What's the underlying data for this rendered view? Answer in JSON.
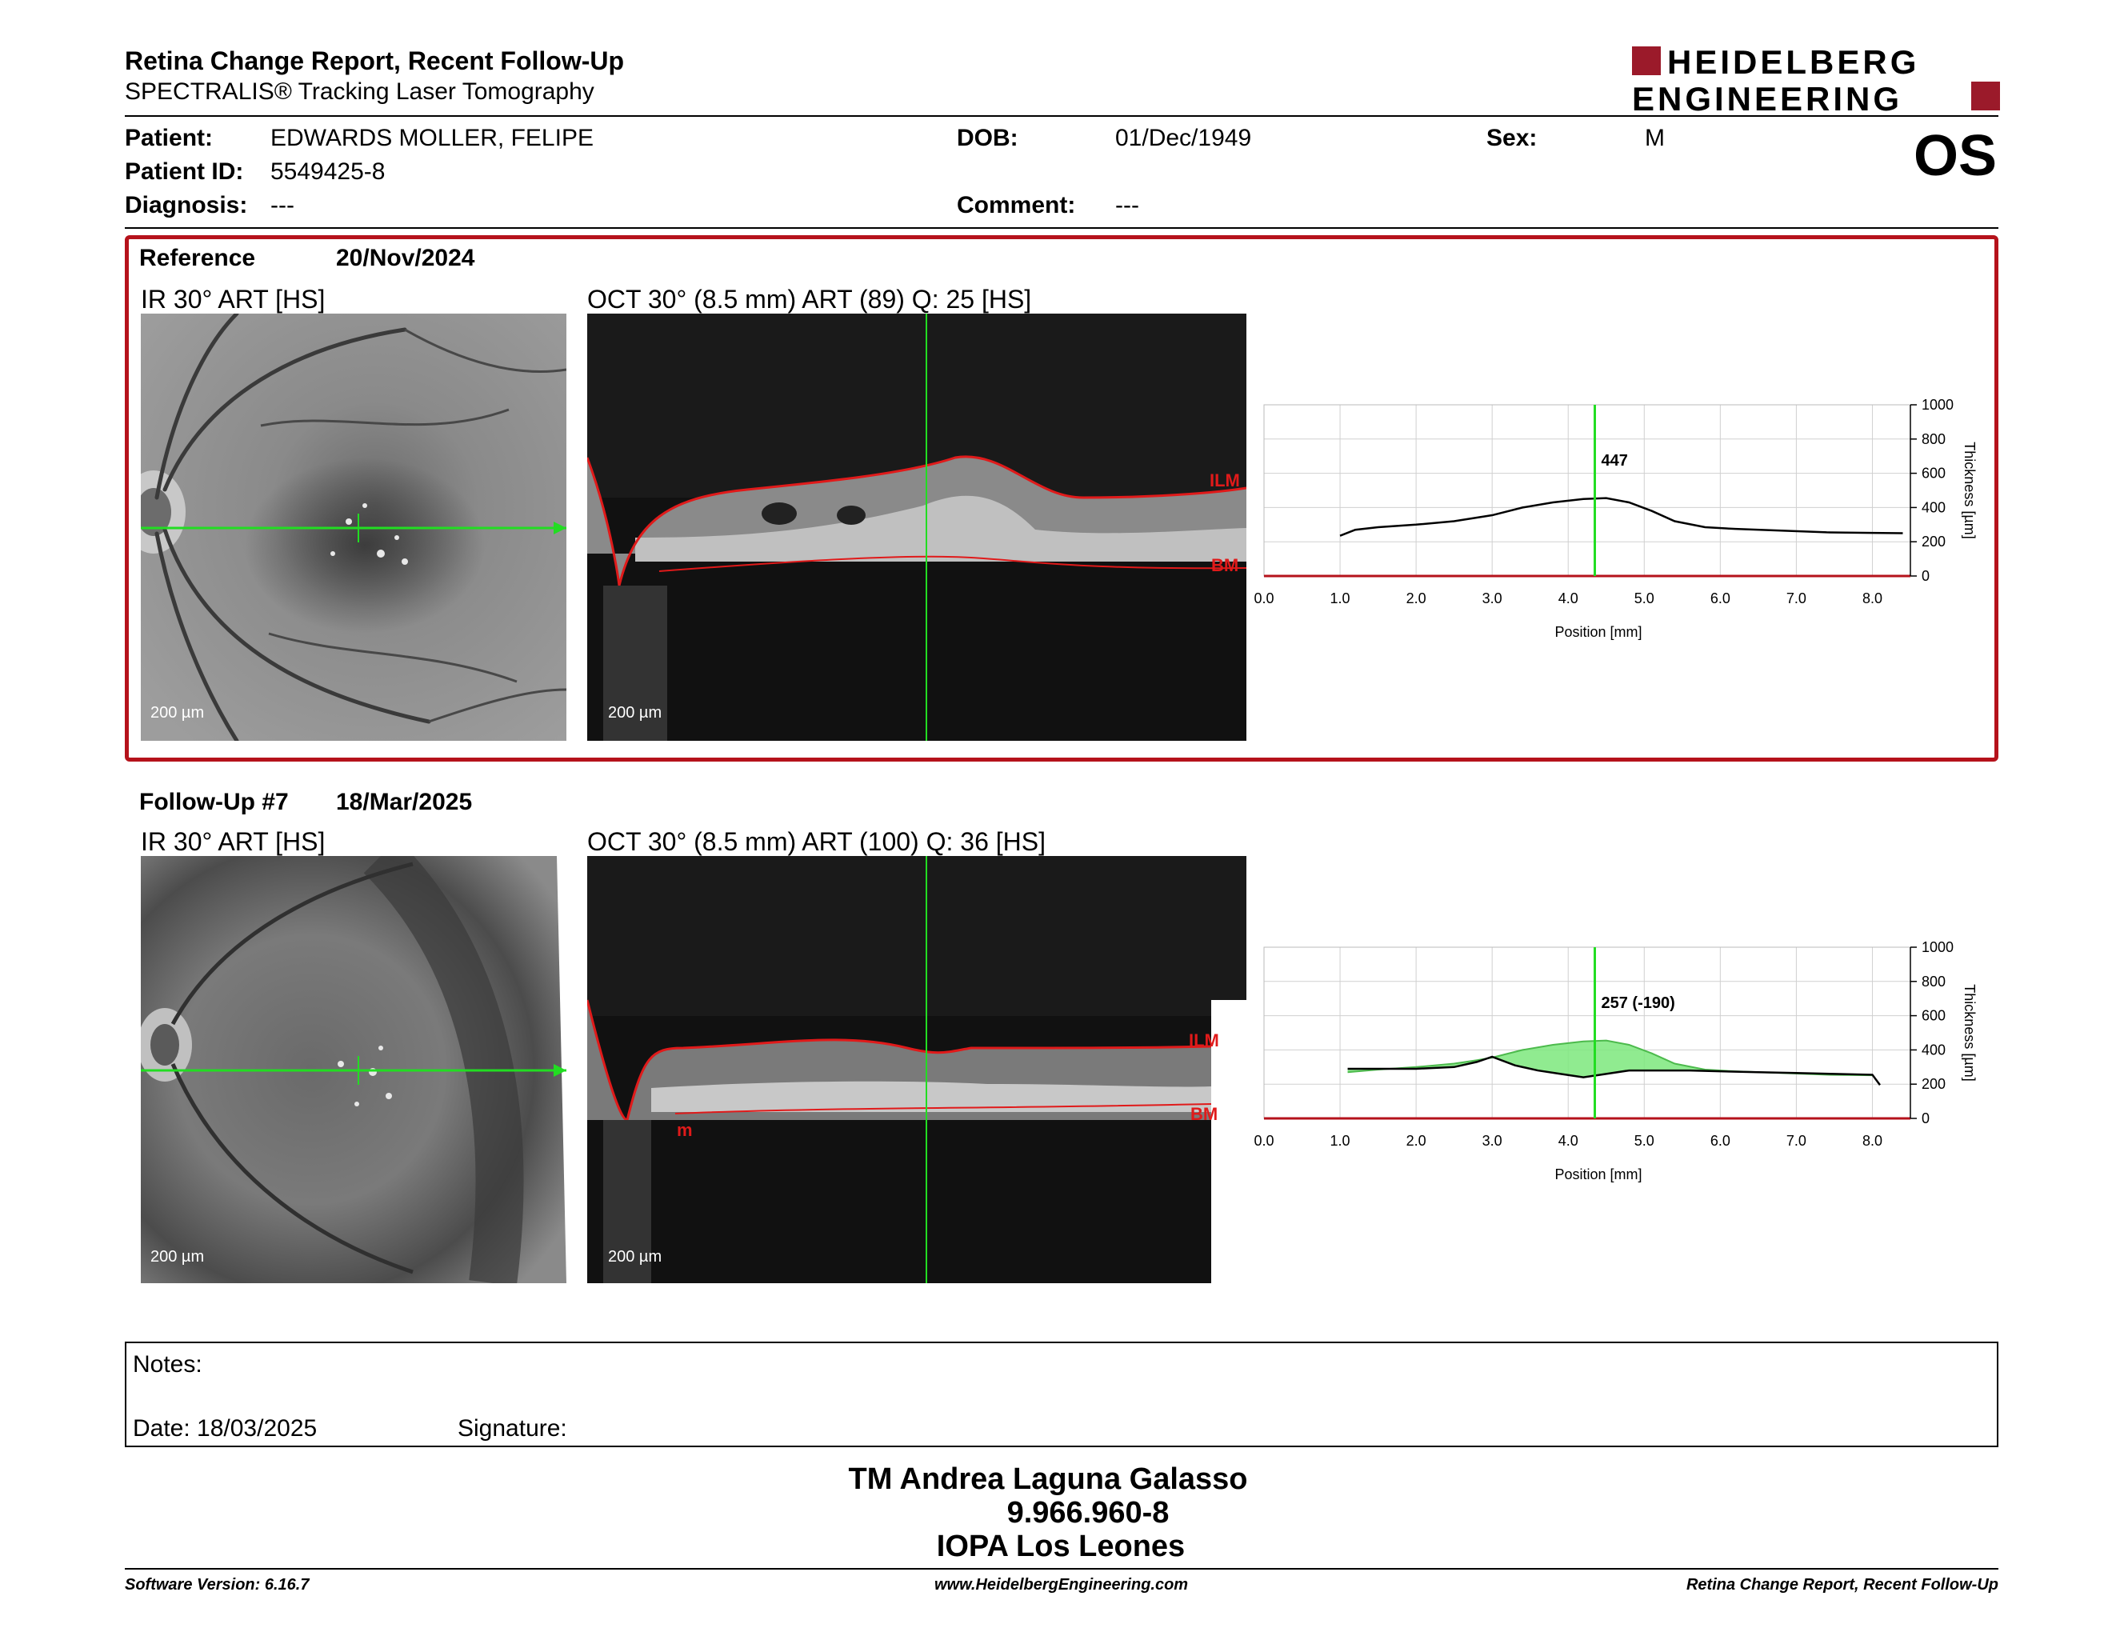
{
  "header": {
    "title": "Retina Change Report, Recent Follow-Up",
    "subtitle": "SPECTRALIS® Tracking Laser Tomography",
    "logo_line1": "HEIDELBERG",
    "logo_line2": "ENGINEERING",
    "eye": "OS"
  },
  "patient": {
    "patient_label": "Patient:",
    "patient_value": "EDWARDS MOLLER, FELIPE",
    "id_label": "Patient ID:",
    "id_value": "5549425-8",
    "diagnosis_label": "Diagnosis:",
    "diagnosis_value": "---",
    "dob_label": "DOB:",
    "dob_value": "01/Dec/1949",
    "comment_label": "Comment:",
    "comment_value": "---",
    "sex_label": "Sex:",
    "sex_value": "M"
  },
  "reference": {
    "label": "Reference",
    "date": "20/Nov/2024",
    "ir_label": "IR 30° ART [HS]",
    "oct_label": "OCT 30° (8.5 mm) ART (89) Q: 25 [HS]",
    "scale_ir": "200 µm",
    "scale_oct": "200 µm",
    "ilm": "ILM",
    "bm": "BM"
  },
  "followup": {
    "label": "Follow-Up #7",
    "date": "18/Mar/2025",
    "ir_label": "IR 30° ART [HS]",
    "oct_label": "OCT 30° (8.5 mm) ART (100) Q: 36 [HS]",
    "scale_ir": "200 µm",
    "scale_oct": "200 µm",
    "ilm": "ILM",
    "bm": "BM",
    "marker": "m"
  },
  "chart_data": [
    {
      "type": "line",
      "xlabel": "Position [mm]",
      "ylabel": "Thickness [µm]",
      "xlim": [
        0,
        8.5
      ],
      "ylim": [
        0,
        1000
      ],
      "x_ticks": [
        "0.0",
        "1.0",
        "2.0",
        "3.0",
        "4.0",
        "5.0",
        "6.0",
        "7.0",
        "8.0"
      ],
      "y_ticks": [
        "0",
        "200",
        "400",
        "600",
        "800",
        "1000"
      ],
      "grid": true,
      "cursor_x": 4.35,
      "cursor_label": "447",
      "series": [
        {
          "x": [
            1.0,
            1.2,
            1.5,
            2.0,
            2.5,
            3.0,
            3.4,
            3.8,
            4.2,
            4.5,
            4.8,
            5.1,
            5.4,
            5.8,
            6.2,
            6.8,
            7.4,
            8.0,
            8.4
          ],
          "y": [
            235,
            270,
            285,
            300,
            320,
            355,
            400,
            430,
            450,
            455,
            430,
            380,
            320,
            285,
            275,
            265,
            255,
            252,
            250
          ]
        }
      ]
    },
    {
      "type": "line",
      "xlabel": "Position [mm]",
      "ylabel": "Thickness [µm]",
      "xlim": [
        0,
        8.5
      ],
      "ylim": [
        0,
        1000
      ],
      "x_ticks": [
        "0.0",
        "1.0",
        "2.0",
        "3.0",
        "4.0",
        "5.0",
        "6.0",
        "7.0",
        "8.0"
      ],
      "y_ticks": [
        "0",
        "200",
        "400",
        "600",
        "800",
        "1000"
      ],
      "grid": true,
      "cursor_x": 4.35,
      "cursor_label": "257 (-190)",
      "series": [
        {
          "x": [
            1.1,
            1.5,
            2.0,
            2.5,
            2.8,
            3.0,
            3.3,
            3.6,
            3.9,
            4.2,
            4.5,
            4.8,
            5.2,
            5.6,
            6.0,
            6.5,
            7.0,
            7.5,
            8.0,
            8.1
          ],
          "y": [
            290,
            290,
            290,
            300,
            330,
            360,
            310,
            280,
            260,
            240,
            260,
            280,
            280,
            280,
            275,
            270,
            265,
            260,
            255,
            195
          ]
        },
        {
          "x": [
            1.1,
            1.5,
            2.0,
            2.5,
            2.8,
            3.0,
            3.4,
            3.8,
            4.2,
            4.5,
            4.8,
            5.1,
            5.4,
            5.8,
            6.2,
            6.8,
            7.4,
            8.0
          ],
          "y": [
            270,
            285,
            300,
            320,
            340,
            355,
            400,
            430,
            450,
            455,
            430,
            380,
            320,
            285,
            275,
            265,
            255,
            252
          ]
        }
      ]
    }
  ],
  "notes": {
    "label": "Notes:",
    "date_label": "Date: 18/03/2025",
    "signature_label": "Signature:"
  },
  "signer": {
    "name": "TM Andrea Laguna Galasso",
    "id": "9.966.960-8",
    "org": "IOPA Los Leones"
  },
  "footer": {
    "software": "Software Version: 6.16.7",
    "website": "www.HeidelbergEngineering.com",
    "report": "Retina Change Report, Recent Follow-Up"
  },
  "colors": {
    "accent": "#b5121b",
    "scan_line": "#22dd22",
    "layer": "#e01a1a",
    "fill": "#7ce87c"
  }
}
